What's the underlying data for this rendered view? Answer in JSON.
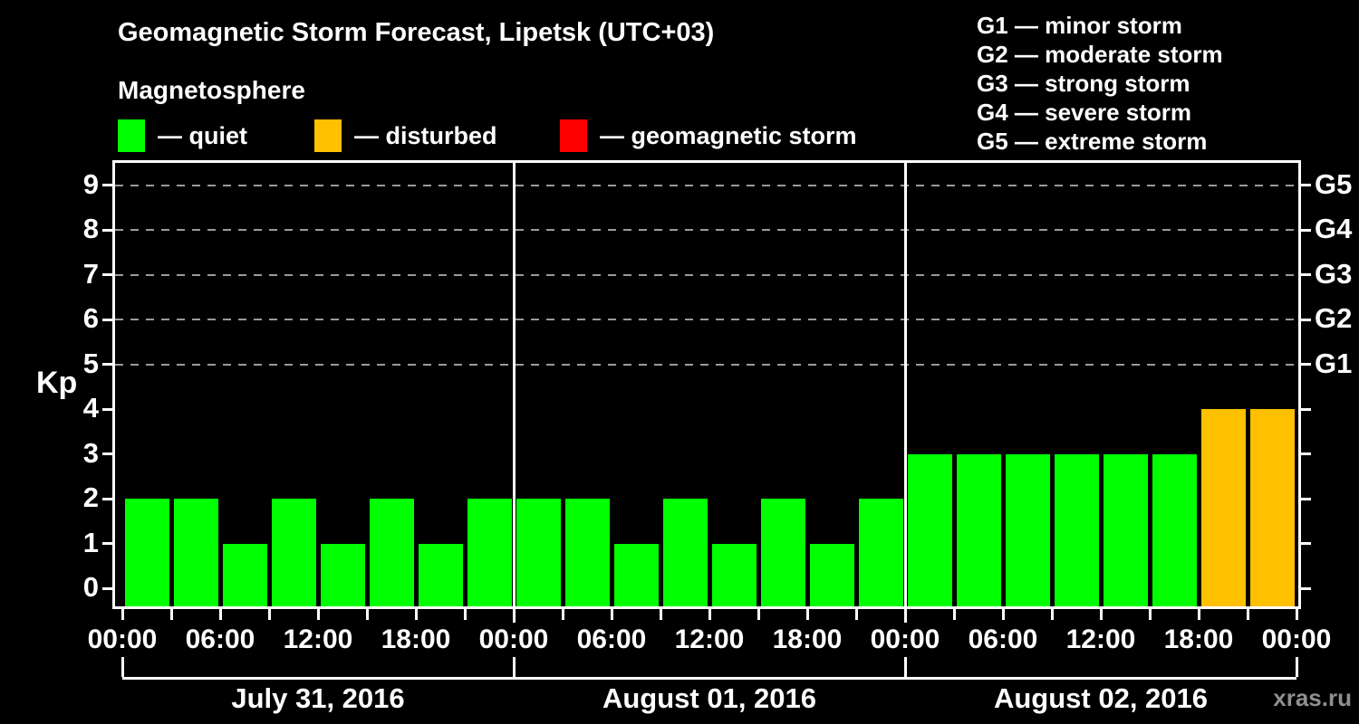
{
  "header": {
    "title": "Geomagnetic Storm Forecast, Lipetsk (UTC+03)"
  },
  "legend": {
    "heading": "Magnetosphere",
    "items": [
      {
        "label": "— quiet",
        "status": "quiet",
        "color": "#00ff00"
      },
      {
        "label": "— disturbed",
        "status": "disturbed",
        "color": "#ffc000"
      },
      {
        "label": "— geomagnetic storm",
        "status": "storm",
        "color": "#ff0000"
      }
    ]
  },
  "g_scale_legend": {
    "items": [
      "G1 — minor storm",
      "G2 — moderate storm",
      "G3 — strong storm",
      "G4 — severe storm",
      "G5 — extreme storm"
    ]
  },
  "watermark": "xras.ru",
  "chart_data": {
    "type": "bar",
    "title": "Geomagnetic Storm Forecast, Lipetsk (UTC+03)",
    "ylabel": "Kp",
    "ylim": [
      -0.4,
      9.5
    ],
    "y_ticks": [
      0,
      1,
      2,
      3,
      4,
      5,
      6,
      7,
      8,
      9
    ],
    "dashed_gridlines_at_kp": [
      5,
      6,
      7,
      8,
      9
    ],
    "grid": "dashed horizontal lines at storm levels G1–G5",
    "legend_position": "top",
    "right_axis": {
      "ticks_at_kp": [
        0,
        1,
        2,
        3,
        4,
        5,
        6,
        7,
        8,
        9
      ],
      "labels": [
        {
          "kp": 5,
          "label": "G1"
        },
        {
          "kp": 6,
          "label": "G2"
        },
        {
          "kp": 7,
          "label": "G3"
        },
        {
          "kp": 8,
          "label": "G4"
        },
        {
          "kp": 9,
          "label": "G5"
        }
      ]
    },
    "x_axis": {
      "hours_total": 72,
      "tick_every_hours": 3,
      "label_every_hours": 6,
      "time_labels": [
        "00:00",
        "06:00",
        "12:00",
        "18:00",
        "00:00",
        "06:00",
        "12:00",
        "18:00",
        "00:00",
        "06:00",
        "12:00",
        "18:00",
        "00:00"
      ]
    },
    "bar_width_hours": 3,
    "status_colors": {
      "quiet": "#00ff00",
      "disturbed": "#ffc000",
      "storm": "#ff0000"
    },
    "days": [
      {
        "date": "July 31, 2016",
        "kp_values": [
          2,
          2,
          1,
          2,
          1,
          2,
          1,
          2
        ],
        "statuses": [
          "quiet",
          "quiet",
          "quiet",
          "quiet",
          "quiet",
          "quiet",
          "quiet",
          "quiet"
        ]
      },
      {
        "date": "August 01, 2016",
        "kp_values": [
          2,
          2,
          1,
          2,
          1,
          2,
          1,
          2
        ],
        "statuses": [
          "quiet",
          "quiet",
          "quiet",
          "quiet",
          "quiet",
          "quiet",
          "quiet",
          "quiet"
        ]
      },
      {
        "date": "August 02, 2016",
        "kp_values": [
          3,
          3,
          3,
          3,
          3,
          3,
          4,
          4
        ],
        "statuses": [
          "quiet",
          "quiet",
          "quiet",
          "quiet",
          "quiet",
          "quiet",
          "disturbed",
          "disturbed"
        ]
      }
    ]
  }
}
